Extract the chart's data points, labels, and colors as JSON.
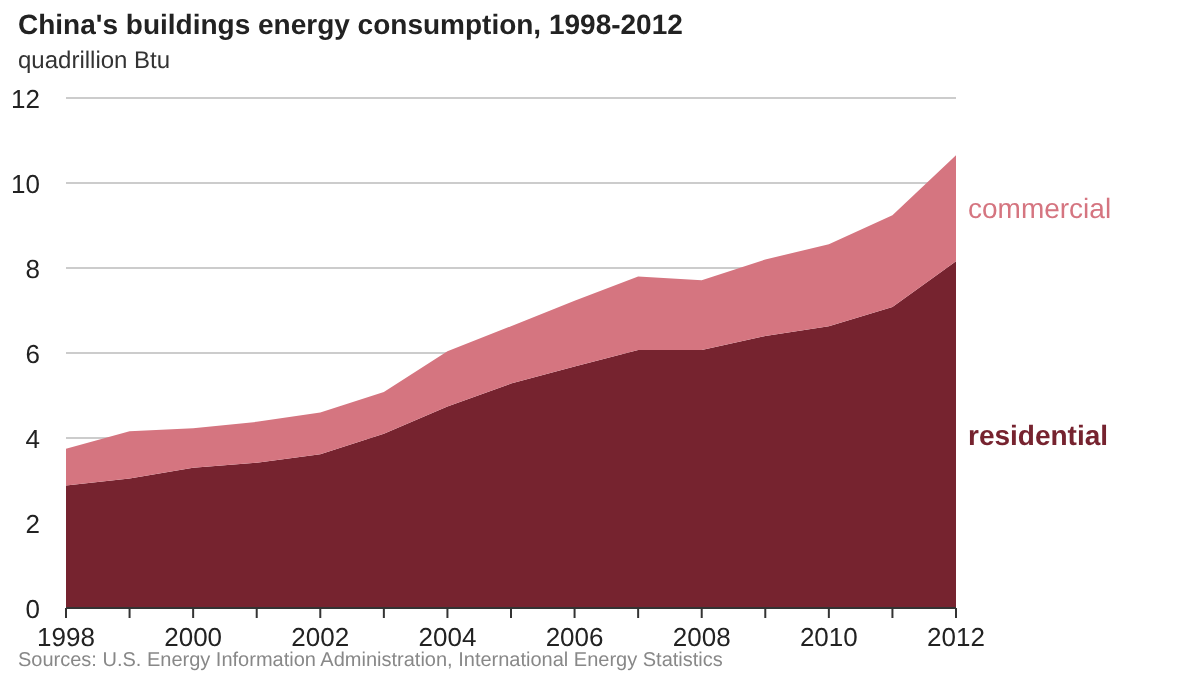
{
  "chart_data": {
    "type": "area",
    "stacked": true,
    "title": "China's buildings energy consumption, 1998-2012",
    "subtitle": "quadrillion Btu",
    "x": [
      1998,
      1999,
      2000,
      2001,
      2002,
      2003,
      2004,
      2005,
      2006,
      2007,
      2008,
      2009,
      2010,
      2011,
      2012
    ],
    "series": [
      {
        "name": "residential",
        "color": "#76232f",
        "values": [
          2.88,
          3.05,
          3.3,
          3.42,
          3.62,
          4.1,
          4.74,
          5.28,
          5.68,
          6.07,
          6.07,
          6.4,
          6.63,
          7.08,
          8.16
        ]
      },
      {
        "name": "commercial",
        "color": "#d57580",
        "values": [
          0.87,
          1.11,
          0.93,
          0.96,
          0.98,
          0.98,
          1.3,
          1.35,
          1.55,
          1.73,
          1.64,
          1.8,
          1.93,
          2.16,
          2.49
        ]
      }
    ],
    "xlim": [
      1998,
      2012
    ],
    "xticks": [
      1998,
      {
        "value": 1999,
        "label": null
      },
      2000,
      {
        "value": 2001,
        "label": null
      },
      2002,
      {
        "value": 2003,
        "label": null
      },
      2004,
      {
        "value": 2005,
        "label": null
      },
      2006,
      {
        "value": 2007,
        "label": null
      },
      2008,
      {
        "value": 2009,
        "label": null
      },
      2010,
      {
        "value": 2011,
        "label": null
      },
      2012
    ],
    "ylim": [
      0,
      12
    ],
    "yticks": [
      0,
      2,
      4,
      6,
      8,
      10,
      12
    ],
    "grid": "y",
    "legend": false,
    "annotations": [
      "Sources: U.S. Energy Information Administration, International Energy Statistics"
    ]
  }
}
